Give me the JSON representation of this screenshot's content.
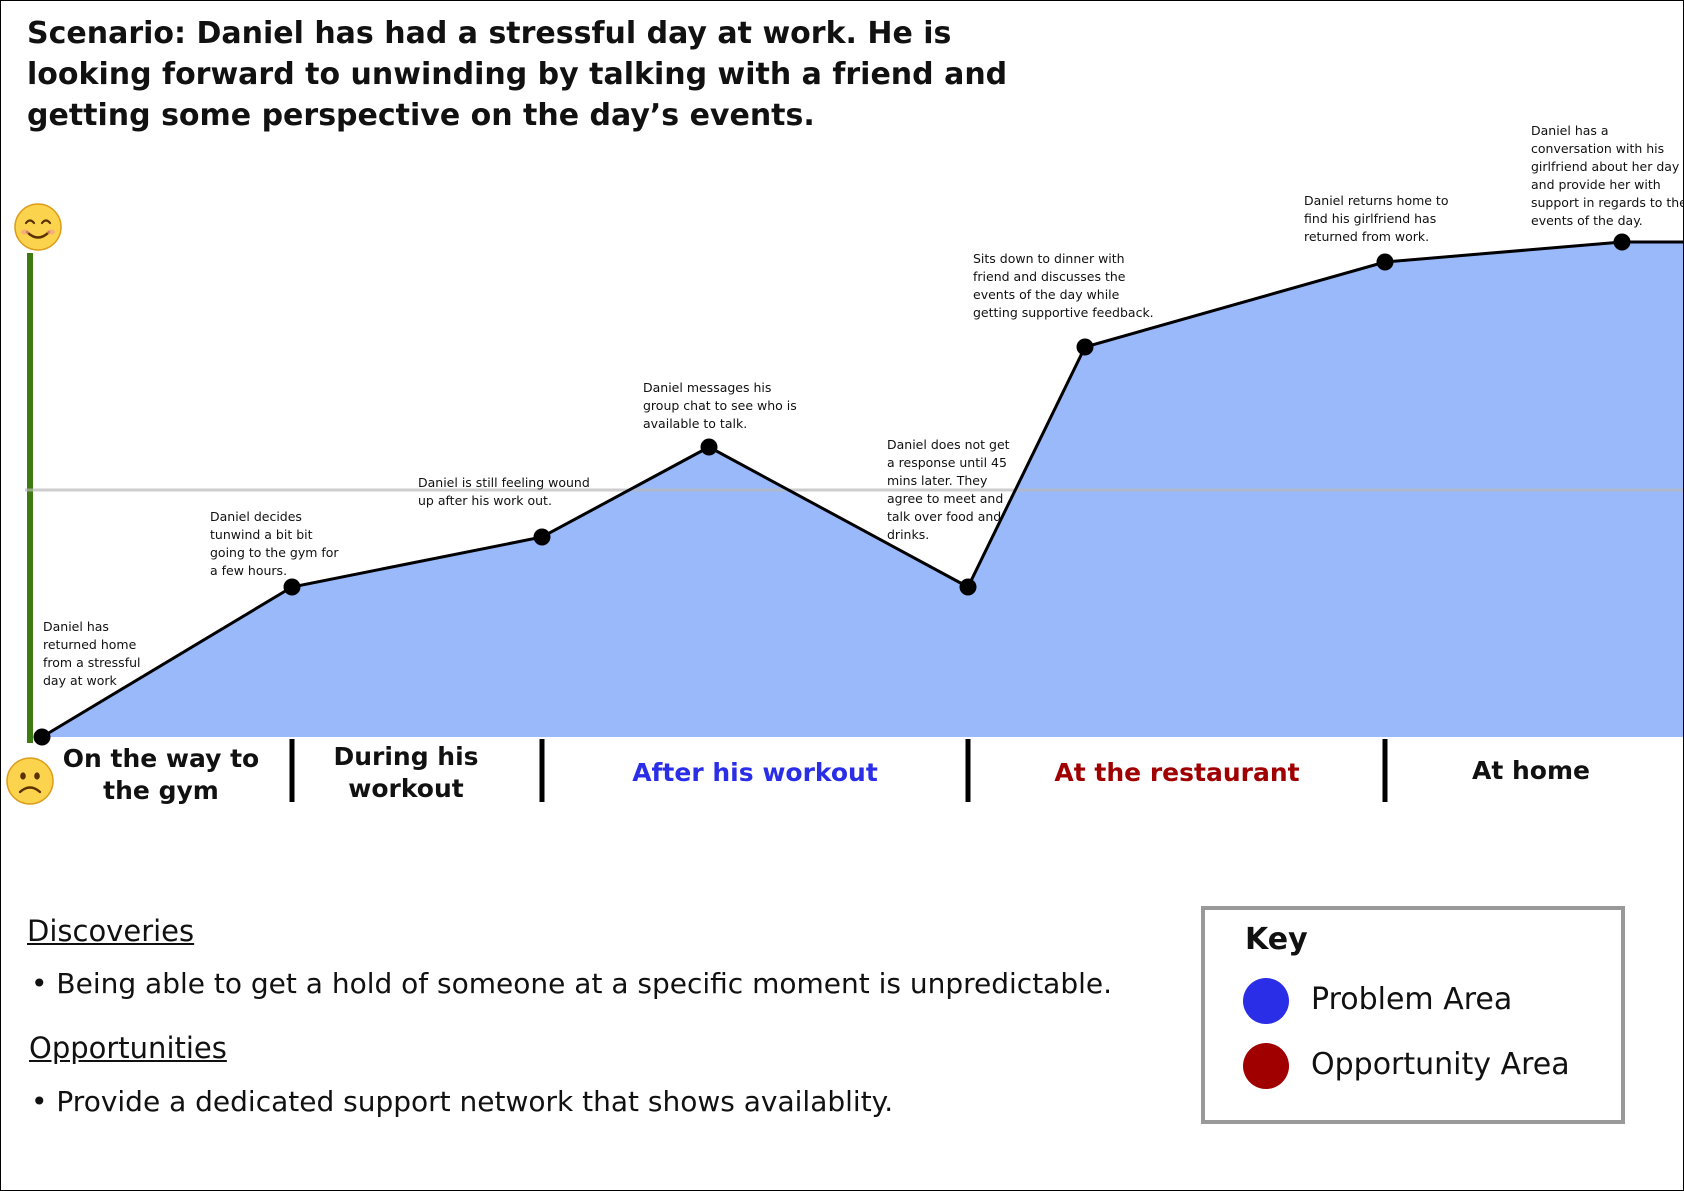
{
  "scenario": "Scenario: Daniel has had a stressful day at work. He is looking forward to unwinding by talking with a friend and getting some perspective on the day’s events.",
  "mood_scale": {
    "top_icon": "smiling-face-icon",
    "bottom_icon": "frowning-face-icon",
    "bar_color": "#3d7a12"
  },
  "colors": {
    "area_fill": "#99b9fb",
    "problem": "#2a2ee6",
    "opportunity": "#a00000",
    "neutral_line": "#cccccc"
  },
  "journey_points": [
    {
      "step": 1,
      "mood": 0.0,
      "caption": [
        "Daniel has",
        "returned home",
        "from a stressful",
        "day at work"
      ]
    },
    {
      "step": 2,
      "mood": 0.3,
      "caption": [
        "Daniel decides",
        "tunwind a bit bit",
        "going to the gym for",
        "a few hours."
      ]
    },
    {
      "step": 3,
      "mood": 0.4,
      "caption": [
        "Daniel is still feeling wound",
        "up after his work out."
      ]
    },
    {
      "step": 4,
      "mood": 0.58,
      "caption": [
        "Daniel messages his",
        "group chat to see who is",
        "available to talk."
      ]
    },
    {
      "step": 5,
      "mood": 0.3,
      "caption": [
        "Daniel does not get",
        "a  response until 45",
        "mins later. They",
        "agree to meet and",
        "talk over food and",
        "drinks."
      ]
    },
    {
      "step": 6,
      "mood": 0.78,
      "caption": [
        "Sits down to dinner with",
        "friend and discusses the",
        "events of the day while",
        "getting supportive feedback."
      ]
    },
    {
      "step": 7,
      "mood": 0.95,
      "caption": [
        "Daniel returns home  to",
        "find his girlfriend has",
        "returned from work."
      ]
    },
    {
      "step": 8,
      "mood": 0.99,
      "caption": [
        "Daniel has a",
        "conversation with his",
        "girlfriend about her day",
        "and provide her with",
        "support in regards to the",
        "events of the day."
      ]
    }
  ],
  "stages": [
    {
      "label": "On the way to the gym",
      "lines": [
        "On the way to",
        "the gym"
      ],
      "color": "#111111"
    },
    {
      "label": "During his workout",
      "lines": [
        "During his",
        "workout"
      ],
      "color": "#111111"
    },
    {
      "label": "After his workout",
      "lines": [
        "After his workout"
      ],
      "color": "#2a2ee6"
    },
    {
      "label": "At the restaurant",
      "lines": [
        "At the restaurant"
      ],
      "color": "#a00000"
    },
    {
      "label": "At home",
      "lines": [
        "At home"
      ],
      "color": "#111111"
    }
  ],
  "discoveries": {
    "title": "Discoveries",
    "items": [
      "• Being able to get a hold of someone at a specific moment is unpredictable."
    ]
  },
  "opportunities": {
    "title": "Opportunities",
    "items": [
      "• Provide a dedicated support network that shows availablity."
    ]
  },
  "key": {
    "title": "Key",
    "items": [
      {
        "label": "Problem Area",
        "color": "#2a2ee6"
      },
      {
        "label": "Opportunity Area",
        "color": "#a00000"
      }
    ]
  }
}
